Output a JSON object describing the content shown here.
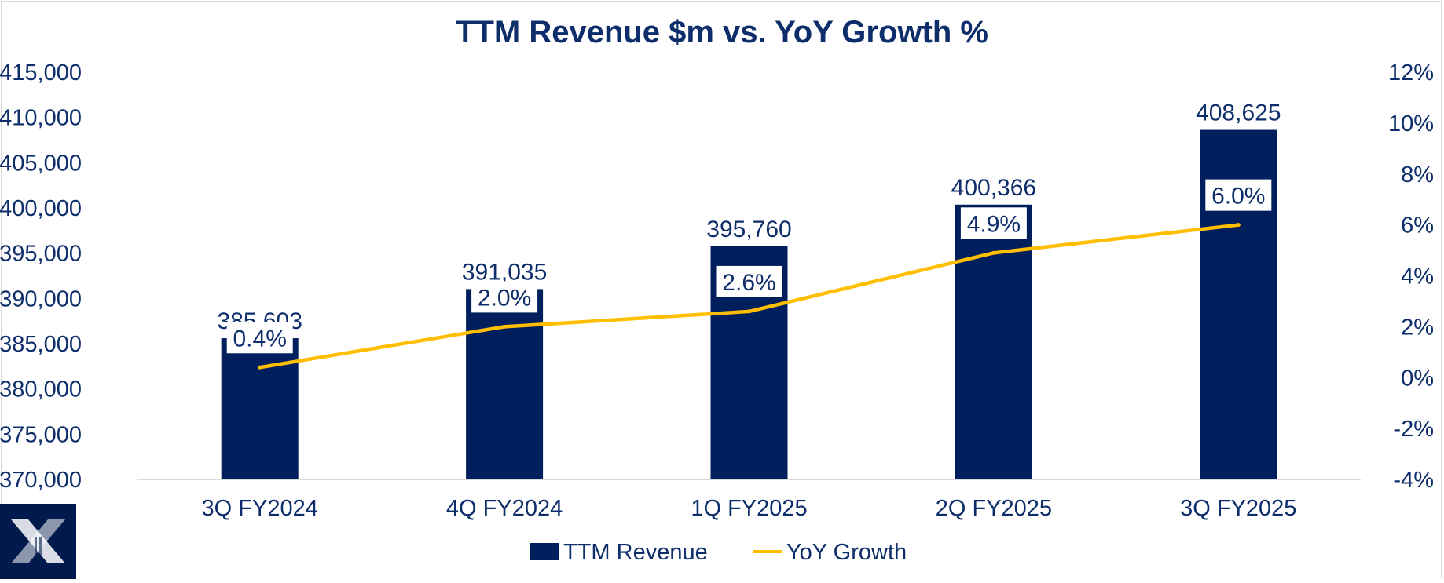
{
  "chart_data": {
    "type": "bar",
    "title": "TTM Revenue $m vs. YoY Growth %",
    "categories": [
      "3Q FY2024",
      "4Q FY2024",
      "1Q FY2025",
      "2Q FY2025",
      "3Q FY2025"
    ],
    "series": [
      {
        "name": "TTM Revenue",
        "type": "bar",
        "axis": "left",
        "values": [
          385603,
          391035,
          395760,
          400366,
          408625
        ],
        "labels": [
          "385,603",
          "391,035",
          "395,760",
          "400,366",
          "408,625"
        ]
      },
      {
        "name": "YoY Growth",
        "type": "line",
        "axis": "right",
        "values": [
          0.4,
          2.0,
          2.6,
          4.9,
          6.0
        ],
        "labels": [
          "0.4%",
          "2.0%",
          "2.6%",
          "4.9%",
          "6.0%"
        ]
      }
    ],
    "y_left": {
      "ylim": [
        370000,
        415000
      ],
      "ticks": [
        370000,
        375000,
        380000,
        385000,
        390000,
        395000,
        400000,
        405000,
        410000,
        415000
      ],
      "tick_labels": [
        "370,000",
        "375,000",
        "380,000",
        "385,000",
        "390,000",
        "395,000",
        "400,000",
        "405,000",
        "410,000",
        "415,000"
      ]
    },
    "y_right": {
      "ylim": [
        -4,
        12
      ],
      "ticks": [
        -4,
        -2,
        0,
        2,
        4,
        6,
        8,
        10,
        12
      ],
      "tick_labels": [
        "-4%",
        "-2%",
        "0%",
        "2%",
        "4%",
        "6%",
        "8%",
        "10%",
        "12%"
      ]
    },
    "xlabel": "",
    "ylabel": "",
    "legend_position": "bottom-center",
    "grid": false
  },
  "colors": {
    "bar": "#001f5c",
    "line": "#ffbf00",
    "text": "#0d2d6b",
    "axis": "#d9d9d9",
    "label_box": "#ffffff"
  },
  "logo": {
    "icon": "x-logo-icon"
  }
}
